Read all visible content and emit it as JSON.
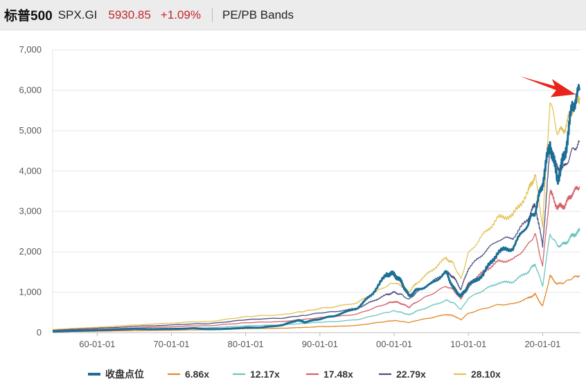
{
  "header": {
    "name": "标普500",
    "code": "SPX.GI",
    "price": "5930.85",
    "change": "+1.09%",
    "title": "PE/PB Bands"
  },
  "chart_data": {
    "type": "line",
    "title": "",
    "xlabel": "",
    "ylabel": "",
    "xlim": [
      1954,
      2025.1
    ],
    "ylim": [
      0,
      7000
    ],
    "grid": true,
    "legend_position": "bottom",
    "x_ticks": [
      1960,
      1970,
      1980,
      1990,
      2000,
      2010,
      2020
    ],
    "x_tick_labels": [
      "60-01-01",
      "70-01-01",
      "80-01-01",
      "90-01-01",
      "00-01-01",
      "10-01-01",
      "20-01-01"
    ],
    "y_ticks": [
      0,
      1000,
      2000,
      3000,
      4000,
      5000,
      6000,
      7000
    ],
    "y_tick_labels": [
      "0",
      "1,000",
      "2,000",
      "3,000",
      "4,000",
      "5,000",
      "6,000",
      "7,000"
    ],
    "x": [
      1954,
      1960,
      1965,
      1970,
      1973,
      1975,
      1978,
      1980,
      1982,
      1985,
      1987,
      1988,
      1990,
      1992,
      1995,
      1997,
      1999,
      2000,
      2001,
      2002,
      2003,
      2005,
      2007,
      2008,
      2009,
      2010,
      2012,
      2014,
      2016,
      2018,
      2019,
      2020,
      2021,
      2022,
      2023,
      2024,
      2025
    ],
    "series": [
      {
        "name": "收盘点位",
        "color": "#1c6e95",
        "width": 3,
        "values": [
          30,
          60,
          90,
          90,
          110,
          85,
          100,
          125,
          125,
          190,
          310,
          260,
          340,
          420,
          600,
          950,
          1450,
          1450,
          1250,
          900,
          1050,
          1200,
          1500,
          1100,
          900,
          1150,
          1450,
          2000,
          2100,
          2700,
          3000,
          3700,
          4700,
          3800,
          4400,
          5600,
          6000
        ]
      },
      {
        "name": "6.86x",
        "color": "#e08a2c",
        "width": 1.3,
        "values": [
          20,
          35,
          50,
          60,
          70,
          70,
          85,
          100,
          105,
          110,
          125,
          130,
          150,
          155,
          180,
          230,
          280,
          300,
          280,
          250,
          300,
          370,
          450,
          420,
          320,
          480,
          590,
          690,
          710,
          850,
          950,
          650,
          1400,
          1200,
          1250,
          1350,
          1420
        ]
      },
      {
        "name": "12.17x",
        "color": "#6cc5c0",
        "width": 1.3,
        "values": [
          35,
          60,
          85,
          100,
          120,
          120,
          150,
          170,
          180,
          190,
          220,
          230,
          260,
          275,
          320,
          410,
          500,
          540,
          500,
          440,
          530,
          660,
          800,
          740,
          570,
          850,
          1050,
          1230,
          1260,
          1500,
          1700,
          1150,
          2450,
          2150,
          2200,
          2400,
          2520
        ]
      },
      {
        "name": "17.48x",
        "color": "#d4646a",
        "width": 1.3,
        "values": [
          50,
          85,
          120,
          145,
          170,
          170,
          215,
          245,
          260,
          275,
          315,
          330,
          375,
          395,
          460,
          590,
          720,
          770,
          720,
          630,
          760,
          950,
          1150,
          1060,
          820,
          1220,
          1500,
          1760,
          1800,
          2160,
          2440,
          1650,
          3500,
          3100,
          3150,
          3450,
          3620
        ]
      },
      {
        "name": "22.79x",
        "color": "#4b4f7e",
        "width": 1.3,
        "values": [
          65,
          110,
          155,
          190,
          220,
          220,
          280,
          320,
          340,
          360,
          410,
          430,
          490,
          520,
          600,
          770,
          940,
          1000,
          940,
          820,
          990,
          1240,
          1500,
          1380,
          1070,
          1590,
          1960,
          2300,
          2350,
          2810,
          3180,
          2150,
          4550,
          4050,
          4100,
          4500,
          4720
        ]
      },
      {
        "name": "28.10x",
        "color": "#e3c35a",
        "width": 1.3,
        "values": [
          80,
          135,
          190,
          235,
          270,
          270,
          345,
          395,
          420,
          445,
          505,
          530,
          600,
          640,
          740,
          950,
          1160,
          1240,
          1160,
          1010,
          1220,
          1530,
          1850,
          1700,
          1320,
          1960,
          2420,
          2840,
          2900,
          3470,
          3920,
          2650,
          5750,
          4950,
          5050,
          5550,
          5820
        ]
      }
    ],
    "annotation": {
      "type": "arrow",
      "color": "#e8251c",
      "points_to": "latest close"
    }
  }
}
